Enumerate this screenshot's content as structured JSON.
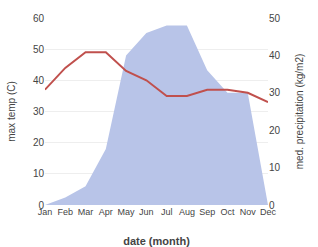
{
  "chart_data": {
    "type": "line",
    "xlabel": "date (month)",
    "ylabel": "max temp (C)",
    "y2label": "med. precipitation (kg/m2)",
    "categories": [
      "Jan",
      "Feb",
      "Mar",
      "Apr",
      "May",
      "Jun",
      "Jul",
      "Aug",
      "Sep",
      "Oct",
      "Nov",
      "Dec"
    ],
    "series": [
      {
        "type": "area",
        "axis": "y2",
        "color": "#b8c4e8",
        "values": [
          0,
          2,
          5,
          15,
          40,
          46,
          48,
          48,
          36,
          30,
          30,
          0
        ]
      },
      {
        "type": "line",
        "color": "#c0504d",
        "values": [
          37,
          44,
          49,
          49,
          43,
          40,
          35,
          35,
          37,
          37,
          36,
          33
        ]
      }
    ],
    "ylim": [
      0,
      60
    ],
    "yticks": [
      0,
      10,
      20,
      30,
      40,
      50,
      60
    ],
    "y2lim": [
      0,
      50
    ],
    "y2ticks": [
      0,
      10,
      20,
      30,
      40,
      50
    ],
    "grid": true
  }
}
